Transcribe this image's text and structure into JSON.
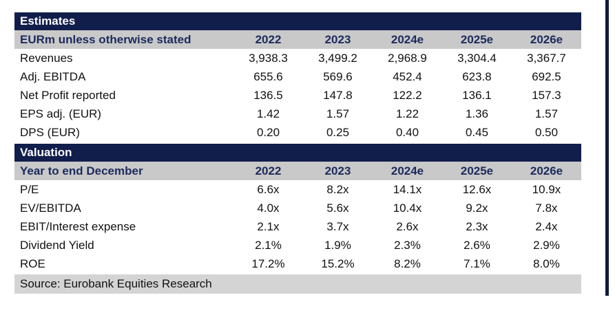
{
  "estimates": {
    "title": "Estimates",
    "header": {
      "label": "EURm unless otherwise stated",
      "years": [
        "2022",
        "2023",
        "2024e",
        "2025e",
        "2026e"
      ]
    },
    "rows": [
      {
        "label": "Revenues",
        "values": [
          "3,938.3",
          "3,499.2",
          "2,968.9",
          "3,304.4",
          "3,367.7"
        ]
      },
      {
        "label": "Adj. EBITDA",
        "values": [
          "655.6",
          "569.6",
          "452.4",
          "623.8",
          "692.5"
        ]
      },
      {
        "label": "Net Profit reported",
        "values": [
          "136.5",
          "147.8",
          "122.2",
          "136.1",
          "157.3"
        ]
      },
      {
        "label": "EPS adj. (EUR)",
        "values": [
          "1.42",
          "1.57",
          "1.22",
          "1.36",
          "1.57"
        ]
      },
      {
        "label": "DPS (EUR)",
        "values": [
          "0.20",
          "0.25",
          "0.40",
          "0.45",
          "0.50"
        ]
      }
    ]
  },
  "valuation": {
    "title": "Valuation",
    "header": {
      "label": "Year to end December",
      "years": [
        "2022",
        "2023",
        "2024e",
        "2025e",
        "2026e"
      ]
    },
    "rows": [
      {
        "label": "P/E",
        "values": [
          "6.6x",
          "8.2x",
          "14.1x",
          "12.6x",
          "10.9x"
        ]
      },
      {
        "label": "EV/EBITDA",
        "values": [
          "4.0x",
          "5.6x",
          "10.4x",
          "9.2x",
          "7.8x"
        ]
      },
      {
        "label": "EBIT/Interest expense",
        "values": [
          "2.1x",
          "3.7x",
          "2.6x",
          "2.3x",
          "2.4x"
        ]
      },
      {
        "label": "Dividend Yield",
        "values": [
          "2.1%",
          "1.9%",
          "2.3%",
          "2.6%",
          "2.9%"
        ]
      },
      {
        "label": "ROE",
        "values": [
          "17.2%",
          "15.2%",
          "8.2%",
          "7.1%",
          "8.0%"
        ]
      }
    ]
  },
  "source": "Source: Eurobank Equities Research"
}
